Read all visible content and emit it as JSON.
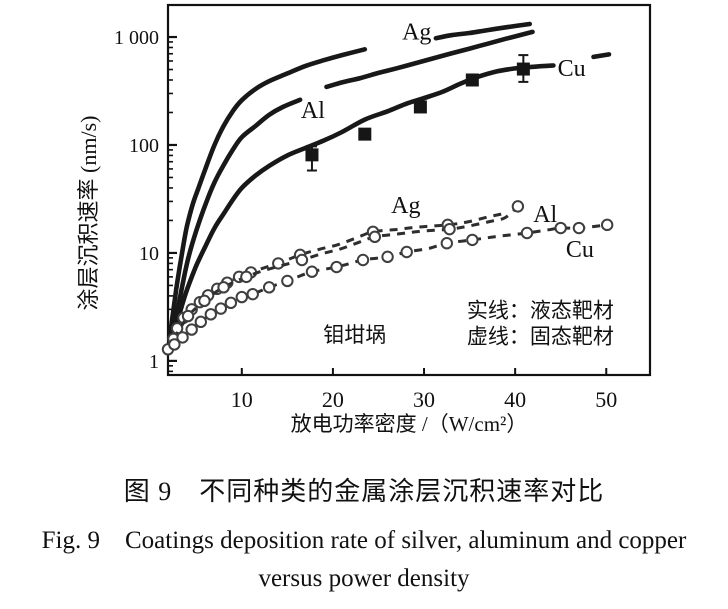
{
  "figure": {
    "caption_zh": "图 9　不同种类的金属涂层沉积速率对比",
    "caption_en_line1": "Fig. 9　Coatings deposition rate of silver, aluminum and copper",
    "caption_en_line2": "versus power density"
  },
  "chart_data": {
    "type": "line",
    "title": "",
    "xlabel": "放电功率密度 /（W/cm²）",
    "ylabel": "涂层沉积速率 (nm/s)",
    "grid": false,
    "x_axis": {
      "scale": "linear",
      "min": 1.9,
      "max": 54.8,
      "ticks": [
        10,
        20,
        30,
        40,
        50
      ]
    },
    "y_axis": {
      "scale": "log",
      "min": 0.74,
      "max": 1980,
      "ticks": [
        1,
        10,
        100,
        1000
      ],
      "tick_labels": [
        "1",
        "10",
        "100",
        "1 000"
      ]
    },
    "legend_note": {
      "line1": "实线：液态靶材",
      "line2": "虚线：固态靶材",
      "x": 34.7,
      "y1": 3.0,
      "y2": 1.72
    },
    "annotation": {
      "text": "钼坩埚",
      "x": 22.4,
      "y": 1.78
    },
    "colors": {
      "solid_line": "#181818",
      "dashed_line": "#2e2e2e",
      "marker_fill": "#ffffff",
      "marker_stroke": "#3f3f3f",
      "square_fill": "#161616",
      "axis": "#111111"
    },
    "series": [
      {
        "name": "Ag liquid target",
        "symbol": "Ag",
        "line": "solid",
        "marker": null,
        "segments": [
          [
            [
              2.0,
              1.4
            ],
            [
              2.4,
              2.6
            ],
            [
              2.8,
              4.6
            ],
            [
              3.2,
              7.5
            ],
            [
              3.6,
              12
            ],
            [
              4.0,
              18
            ],
            [
              4.6,
              28
            ],
            [
              5.2,
              39
            ],
            [
              6.0,
              60
            ],
            [
              7.0,
              100
            ],
            [
              8.0,
              150
            ],
            [
              9.0,
              205
            ],
            [
              10,
              260
            ],
            [
              11.5,
              330
            ],
            [
              13,
              390
            ],
            [
              15,
              460
            ],
            [
              17,
              540
            ],
            [
              19,
              610
            ],
            [
              21,
              680
            ],
            [
              23.5,
              770
            ]
          ],
          [
            [
              31.3,
              975
            ],
            [
              33,
              1040
            ],
            [
              35,
              1090
            ],
            [
              37,
              1160
            ],
            [
              39,
              1230
            ],
            [
              41.6,
              1320
            ]
          ]
        ],
        "label": {
          "text": "Ag",
          "x": 29.2,
          "y": 1120
        }
      },
      {
        "name": "Al liquid target",
        "symbol": "Al",
        "line": "solid",
        "marker": null,
        "segments": [
          [
            [
              2.2,
              1.4
            ],
            [
              2.7,
              2.3
            ],
            [
              3.2,
              3.8
            ],
            [
              3.7,
              6.2
            ],
            [
              4.2,
              9.5
            ],
            [
              5.0,
              16
            ],
            [
              6.0,
              28
            ],
            [
              7.0,
              45
            ],
            [
              8.0,
              65
            ],
            [
              9.0,
              90
            ],
            [
              10,
              118
            ],
            [
              11.5,
              150
            ],
            [
              13,
              190
            ],
            [
              14.5,
              225
            ],
            [
              16.4,
              262
            ]
          ],
          [
            [
              19.3,
              345
            ],
            [
              21,
              380
            ],
            [
              23,
              416
            ],
            [
              25,
              465
            ],
            [
              27,
              513
            ],
            [
              29,
              570
            ],
            [
              31,
              634
            ],
            [
              33,
              705
            ],
            [
              35,
              782
            ],
            [
              37,
              868
            ],
            [
              39,
              964
            ],
            [
              41.9,
              1115
            ]
          ]
        ],
        "label": {
          "text": "Al",
          "x": 17.8,
          "y": 211
        }
      },
      {
        "name": "Cu liquid target",
        "symbol": "Cu",
        "line": "solid",
        "marker": "square",
        "segments": [
          [
            [
              2.3,
              1.4
            ],
            [
              2.8,
              2.1
            ],
            [
              3.4,
              3.2
            ],
            [
              4.0,
              4.6
            ],
            [
              5.0,
              7.6
            ],
            [
              6.0,
              11.5
            ],
            [
              7.0,
              17
            ],
            [
              8.0,
              23
            ],
            [
              9.0,
              31
            ],
            [
              10,
              40
            ],
            [
              11.5,
              52
            ],
            [
              13,
              64
            ],
            [
              15,
              80
            ],
            [
              17,
              94
            ],
            [
              19,
              110
            ],
            [
              21,
              132
            ],
            [
              23.5,
              172
            ],
            [
              26,
              205
            ],
            [
              28,
              240
            ],
            [
              30,
              272
            ],
            [
              32,
              310
            ],
            [
              34,
              370
            ],
            [
              36,
              430
            ],
            [
              38,
              480
            ],
            [
              40,
              512
            ],
            [
              42,
              530
            ],
            [
              44.2,
              545
            ]
          ],
          [
            [
              48.6,
              655
            ],
            [
              50.3,
              690
            ]
          ]
        ],
        "markers": [
          [
            17.7,
            81
          ],
          [
            23.5,
            126
          ],
          [
            29.6,
            225
          ],
          [
            35.3,
            400
          ],
          [
            40.9,
            505
          ]
        ],
        "error_bars": [
          {
            "x": 17.7,
            "y": 81,
            "low": 58,
            "high": 97
          },
          {
            "x": 40.9,
            "y": 505,
            "low": 384,
            "high": 680
          }
        ],
        "label": {
          "text": "Cu",
          "x": 46.2,
          "y": 516
        }
      },
      {
        "name": "Ag solid target",
        "symbol": "Ag",
        "line": "dashed",
        "marker": "circle",
        "segments": [
          [
            [
              2.9,
              2.0
            ],
            [
              3.6,
              2.5
            ],
            [
              4.5,
              3.0
            ],
            [
              5.4,
              3.5
            ],
            [
              6.3,
              4.05
            ],
            [
              7.3,
              4.65
            ],
            [
              8.4,
              5.3
            ],
            [
              9.7,
              6.0
            ],
            [
              11,
              6.6
            ],
            [
              12.5,
              7.3
            ],
            [
              14,
              8.0
            ],
            [
              16.4,
              9.6
            ],
            [
              18.5,
              10.8
            ],
            [
              20.5,
              11.9
            ],
            [
              22.4,
              13.6
            ],
            [
              24.4,
              15.7
            ],
            [
              27,
              16.5
            ],
            [
              29.5,
              17.4
            ],
            [
              32.6,
              18.2
            ],
            [
              34.8,
              19.4
            ],
            [
              37,
              21.5
            ],
            [
              38.8,
              23.2
            ]
          ]
        ],
        "markers": [
          [
            2.9,
            2.0
          ],
          [
            3.6,
            2.5
          ],
          [
            4.5,
            3.0
          ],
          [
            5.4,
            3.5
          ],
          [
            6.3,
            4.05
          ],
          [
            7.3,
            4.65
          ],
          [
            8.4,
            5.3
          ],
          [
            9.7,
            6.0
          ],
          [
            11,
            6.6
          ],
          [
            14,
            8.0
          ],
          [
            16.4,
            9.6
          ],
          [
            24.4,
            15.7
          ],
          [
            32.6,
            18.2
          ]
        ],
        "label": {
          "text": "Ag",
          "x": 28.0,
          "y": 27.8
        }
      },
      {
        "name": "Al solid target",
        "symbol": "Al",
        "line": "dashed",
        "marker": "circle",
        "segments": [
          [
            [
              2.5,
              1.6
            ],
            [
              3.3,
              2.05
            ],
            [
              4.1,
              2.6
            ],
            [
              5.0,
              3.1
            ],
            [
              5.9,
              3.6
            ],
            [
              6.9,
              4.2
            ],
            [
              8.0,
              4.8
            ],
            [
              9.2,
              5.4
            ],
            [
              10.5,
              6.0
            ],
            [
              12,
              6.7
            ],
            [
              13.5,
              7.3
            ],
            [
              15,
              7.9
            ],
            [
              16.6,
              8.6
            ],
            [
              18.7,
              9.8
            ],
            [
              20.7,
              10.8
            ],
            [
              22.6,
              12.3
            ],
            [
              24.6,
              14.1
            ],
            [
              27.2,
              15.0
            ],
            [
              29.7,
              15.9
            ],
            [
              32.8,
              16.6
            ],
            [
              35,
              17.8
            ],
            [
              37.3,
              19.6
            ],
            [
              38.9,
              21.2
            ],
            [
              40.3,
              27.0
            ]
          ]
        ],
        "markers": [
          [
            2.5,
            1.6
          ],
          [
            4.1,
            2.6
          ],
          [
            5.9,
            3.6
          ],
          [
            8.0,
            4.8
          ],
          [
            10.5,
            6.0
          ],
          [
            16.6,
            8.6
          ],
          [
            24.6,
            14.1
          ],
          [
            32.8,
            16.6
          ],
          [
            40.3,
            27.0
          ]
        ],
        "label": {
          "text": "Al",
          "x": 43.3,
          "y": 23.0
        }
      },
      {
        "name": "Cu solid target",
        "symbol": "Cu",
        "line": "dashed",
        "marker": "circle",
        "segments": [
          [
            [
              1.9,
              1.28
            ],
            [
              2.6,
              1.42
            ],
            [
              3.5,
              1.65
            ],
            [
              4.5,
              1.95
            ],
            [
              5.5,
              2.3
            ],
            [
              6.6,
              2.7
            ],
            [
              7.7,
              3.05
            ],
            [
              8.8,
              3.45
            ],
            [
              10,
              3.9
            ],
            [
              11.2,
              4.15
            ],
            [
              13,
              4.8
            ],
            [
              15,
              5.5
            ],
            [
              17.7,
              6.7
            ],
            [
              20.4,
              7.4
            ],
            [
              23.3,
              8.6
            ],
            [
              26,
              9.2
            ],
            [
              28.1,
              10.2
            ],
            [
              30.5,
              11.0
            ],
            [
              32.5,
              12.3
            ],
            [
              35.3,
              13.2
            ],
            [
              38,
              14.2
            ],
            [
              41.3,
              15.3
            ],
            [
              43.5,
              16.3
            ],
            [
              45,
              17.0
            ],
            [
              47,
              17.0
            ],
            [
              50.1,
              18.2
            ]
          ]
        ],
        "markers": [
          [
            1.9,
            1.28
          ],
          [
            2.6,
            1.42
          ],
          [
            3.5,
            1.65
          ],
          [
            4.5,
            1.95
          ],
          [
            5.5,
            2.3
          ],
          [
            6.6,
            2.7
          ],
          [
            7.7,
            3.05
          ],
          [
            8.8,
            3.45
          ],
          [
            10,
            3.9
          ],
          [
            11.2,
            4.15
          ],
          [
            13,
            4.8
          ],
          [
            15,
            5.5
          ],
          [
            17.7,
            6.7
          ],
          [
            20.4,
            7.4
          ],
          [
            23.3,
            8.6
          ],
          [
            26,
            9.2
          ],
          [
            28.1,
            10.2
          ],
          [
            32.5,
            12.3
          ],
          [
            35.3,
            13.2
          ],
          [
            41.3,
            15.3
          ],
          [
            45,
            17.0
          ],
          [
            47,
            17.0
          ],
          [
            50.1,
            18.2
          ]
        ],
        "label": {
          "text": "Cu",
          "x": 47.1,
          "y": 10.9
        }
      }
    ]
  }
}
